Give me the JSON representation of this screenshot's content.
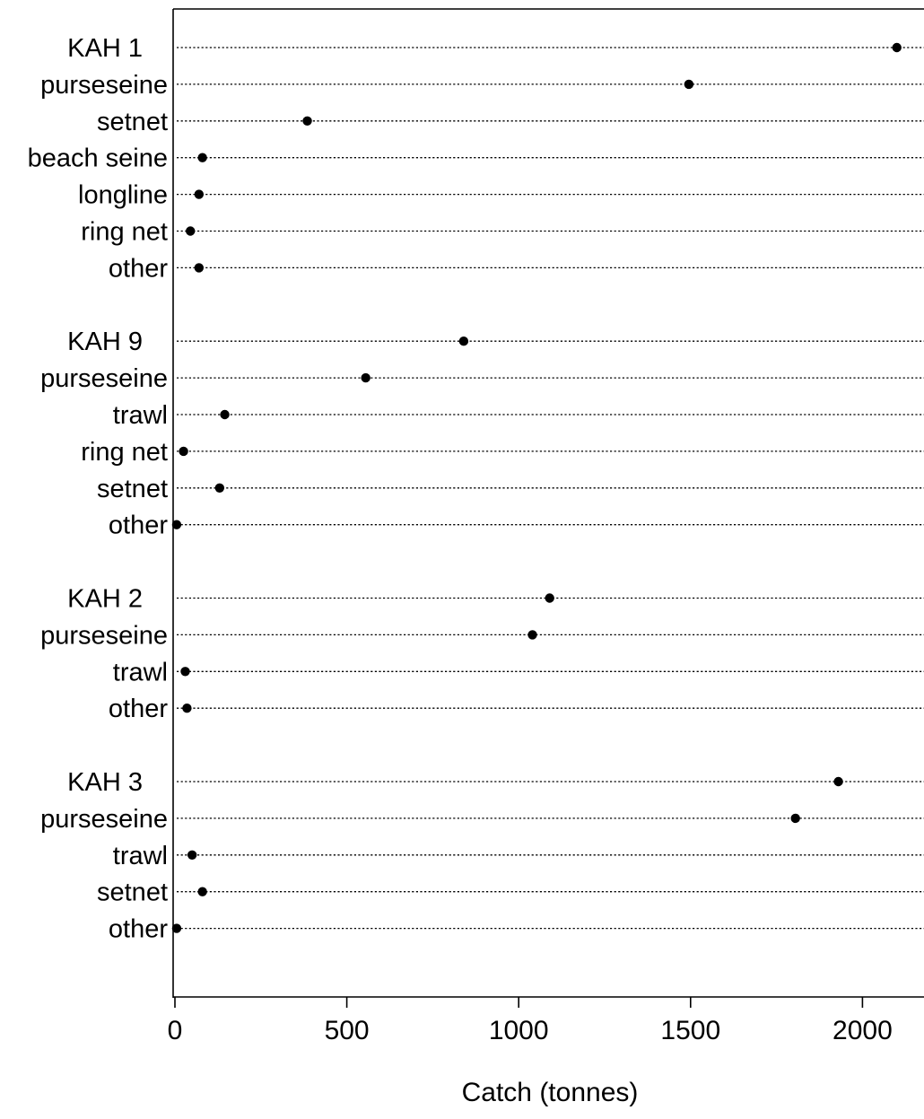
{
  "chart_data": {
    "type": "scatter",
    "subtype": "dot-plot",
    "title": "",
    "xlabel": "Catch (tonnes)",
    "ylabel": "",
    "xlim": [
      0,
      2190
    ],
    "x_ticks": [
      0,
      500,
      1000,
      1500,
      2000
    ],
    "grid": "dotted horizontal guide lines per row",
    "legend": "none",
    "colors": {
      "marker": "#000000",
      "axis": "#000000",
      "guide": "#000000",
      "background": "#ffffff"
    },
    "groups": [
      {
        "rows": [
          {
            "label": "KAH 1",
            "value": 2100
          },
          {
            "label": "purseseine",
            "value": 1495
          },
          {
            "label": "setnet",
            "value": 385
          },
          {
            "label": "beach seine",
            "value": 80
          },
          {
            "label": "longline",
            "value": 70
          },
          {
            "label": "ring net",
            "value": 45
          },
          {
            "label": "other",
            "value": 70
          }
        ]
      },
      {
        "rows": [
          {
            "label": "KAH 9",
            "value": 840
          },
          {
            "label": "purseseine",
            "value": 555
          },
          {
            "label": "trawl",
            "value": 145
          },
          {
            "label": "ring net",
            "value": 25
          },
          {
            "label": "setnet",
            "value": 130
          },
          {
            "label": "other",
            "value": 5
          }
        ]
      },
      {
        "rows": [
          {
            "label": "KAH 2",
            "value": 1090
          },
          {
            "label": "purseseine",
            "value": 1040
          },
          {
            "label": "trawl",
            "value": 30
          },
          {
            "label": "other",
            "value": 35
          }
        ]
      },
      {
        "rows": [
          {
            "label": "KAH 3",
            "value": 1930
          },
          {
            "label": "purseseine",
            "value": 1805
          },
          {
            "label": "trawl",
            "value": 50
          },
          {
            "label": "setnet",
            "value": 80
          },
          {
            "label": "other",
            "value": 5
          }
        ]
      }
    ]
  }
}
